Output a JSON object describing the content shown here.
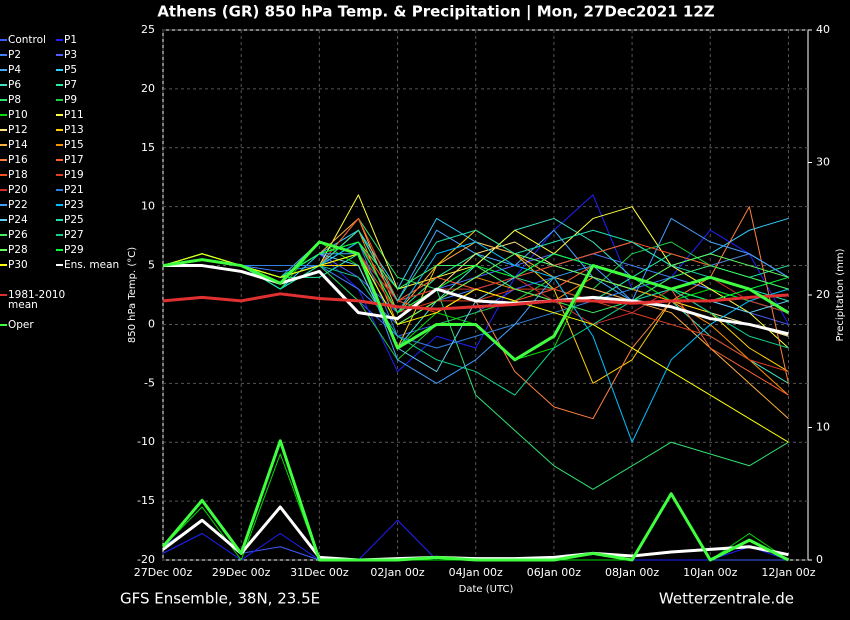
{
  "chart_data": {
    "type": "line",
    "title": "Athens  (GR)  850 hPa Temp. & Precipitation | Mon, 27Dec2021 12Z",
    "footer_left": "GFS Ensemble, 38N, 23.5E",
    "footer_right": "Wetterzentrale.de",
    "xlabel": "Date (UTC)",
    "ylabel": "850 hPa Temp. (°C)",
    "y2label": "Precipitation (mm)",
    "grid": true,
    "x": [
      0,
      1,
      2,
      3,
      4,
      5,
      6,
      7,
      8,
      9,
      10,
      11,
      12,
      13,
      14,
      15,
      16
    ],
    "xlim": [
      0,
      16.5
    ],
    "xticks": [
      {
        "value": 0,
        "label": "27Dec 00z"
      },
      {
        "value": 2,
        "label": "29Dec 00z"
      },
      {
        "value": 4,
        "label": "31Dec 00z"
      },
      {
        "value": 6,
        "label": "02Jan 00z"
      },
      {
        "value": 8,
        "label": "04Jan 00z"
      },
      {
        "value": 10,
        "label": "06Jan 00z"
      },
      {
        "value": 12,
        "label": "08Jan 00z"
      },
      {
        "value": 14,
        "label": "10Jan 00z"
      },
      {
        "value": 16,
        "label": "12Jan 00z"
      }
    ],
    "ylim": [
      -20,
      25
    ],
    "yticks": [
      -20,
      -15,
      -10,
      -5,
      0,
      5,
      10,
      15,
      20,
      25
    ],
    "y2lim": [
      0,
      40
    ],
    "y2ticks": [
      0,
      10,
      20,
      30,
      40
    ],
    "series": [
      {
        "name": "Control",
        "color": "#3a5cff",
        "values": [
          5,
          5.5,
          5,
          4,
          5,
          2,
          -1,
          0,
          1,
          3,
          4,
          3,
          2,
          4,
          3,
          2,
          1
        ],
        "precip": [
          1,
          3,
          0.5,
          1,
          0,
          0,
          0,
          0,
          0,
          0,
          0,
          0,
          0,
          0,
          0,
          0,
          0
        ]
      },
      {
        "name": "P1",
        "color": "#2020ff",
        "values": [
          5,
          6,
          5,
          4,
          6,
          3,
          -4,
          -1,
          -2,
          4,
          8,
          11,
          3,
          4,
          8,
          6,
          0
        ],
        "precip": [
          0.5,
          2,
          0,
          2,
          0,
          0,
          3,
          0,
          0,
          0,
          0,
          0,
          0,
          0,
          0,
          1,
          0
        ]
      },
      {
        "name": "P2",
        "color": "#4080ff",
        "values": [
          5,
          6,
          5,
          4.5,
          5,
          3,
          0,
          2,
          3,
          4,
          5,
          6,
          5,
          4,
          3,
          2,
          1
        ]
      },
      {
        "name": "P3",
        "color": "#5060ff",
        "values": [
          5,
          6,
          5,
          4,
          6,
          4,
          1,
          3,
          4,
          5,
          6,
          5,
          4,
          3,
          2,
          1,
          0
        ]
      },
      {
        "name": "P4",
        "color": "#4aa8ff",
        "values": [
          5,
          6,
          5,
          4,
          7,
          6,
          2,
          8,
          6,
          5,
          8,
          4,
          2,
          3,
          1,
          0,
          -1
        ]
      },
      {
        "name": "P5",
        "color": "#30d0ff",
        "values": [
          5,
          6,
          5,
          3,
          6,
          8,
          3,
          9,
          7,
          6,
          5,
          6,
          7,
          5,
          6,
          8,
          9
        ]
      },
      {
        "name": "P6",
        "color": "#40e0c0",
        "values": [
          5,
          6,
          5,
          4,
          5,
          5,
          -2,
          2,
          5,
          8,
          9,
          7,
          4,
          2,
          -1,
          -3,
          -5
        ]
      },
      {
        "name": "P7",
        "color": "#20f0a0",
        "values": [
          5,
          6,
          5,
          4,
          4,
          6,
          1,
          4,
          6,
          4,
          3,
          2,
          4,
          6,
          5,
          4,
          5
        ]
      },
      {
        "name": "P8",
        "color": "#30e070",
        "values": [
          5,
          6,
          5,
          3,
          5,
          9,
          4,
          3,
          -6,
          -9,
          -12,
          -14,
          -12,
          -10,
          -11,
          -12,
          -10
        ]
      },
      {
        "name": "P9",
        "color": "#20d040",
        "values": [
          5,
          6,
          5,
          4,
          5,
          2,
          -3,
          0,
          1,
          2,
          4,
          3,
          6,
          7,
          5,
          4,
          3
        ]
      },
      {
        "name": "P10",
        "color": "#00e000",
        "values": [
          5,
          5.5,
          5,
          3,
          7,
          5,
          -2,
          1,
          0,
          -3,
          -2,
          5,
          4,
          2,
          3,
          2,
          1
        ],
        "precip": [
          1,
          4,
          0,
          8,
          0,
          0,
          0,
          0,
          0,
          0,
          0,
          0,
          0,
          5,
          0,
          2,
          0
        ]
      },
      {
        "name": "P11",
        "color": "#ffff40",
        "values": [
          5,
          6,
          5,
          4,
          5,
          11,
          3,
          4,
          5,
          8,
          6,
          9,
          10,
          5,
          3,
          1,
          -2
        ]
      },
      {
        "name": "P12",
        "color": "#ffe080",
        "values": [
          5,
          6,
          5,
          4,
          5,
          8,
          2,
          3,
          6,
          7,
          5,
          4,
          3,
          2,
          1,
          0,
          -1
        ]
      },
      {
        "name": "P13",
        "color": "#ffd000",
        "values": [
          5,
          6,
          5,
          4,
          5,
          5,
          -2,
          5,
          8,
          6,
          3,
          -5,
          -3,
          2,
          1,
          -2,
          -4
        ]
      },
      {
        "name": "P14",
        "color": "#ffb040",
        "values": [
          5,
          6,
          5,
          4,
          6,
          9,
          1,
          5,
          7,
          6,
          4,
          3,
          2,
          1,
          -2,
          -5,
          -8
        ]
      },
      {
        "name": "P15",
        "color": "#ff9000",
        "values": [
          5,
          6,
          5,
          4,
          5,
          8,
          0,
          2,
          4,
          3,
          2,
          4,
          3,
          2,
          0,
          -3,
          -6
        ]
      },
      {
        "name": "P16",
        "color": "#ff8040",
        "values": [
          5,
          6,
          5,
          4,
          5,
          7,
          1,
          3,
          2,
          -4,
          -7,
          -8,
          -2,
          2,
          4,
          10,
          -5
        ]
      },
      {
        "name": "P17",
        "color": "#ff6030",
        "values": [
          5,
          6,
          5,
          4,
          5,
          7,
          2,
          4,
          3,
          2,
          3,
          5,
          4,
          3,
          -2,
          -4,
          -6
        ]
      },
      {
        "name": "P18",
        "color": "#ff5020",
        "values": [
          5,
          6,
          5,
          4,
          5,
          9,
          2,
          1,
          3,
          4,
          5,
          6,
          7,
          6,
          5,
          6,
          4
        ]
      },
      {
        "name": "P19",
        "color": "#e04020",
        "values": [
          5,
          6,
          5,
          4,
          5,
          6,
          1,
          2,
          2,
          3,
          3,
          2,
          1,
          0,
          -1,
          -3,
          -4
        ]
      },
      {
        "name": "P20",
        "color": "#d03030",
        "values": [
          5,
          6,
          5,
          4,
          5,
          6,
          2,
          3,
          3,
          4,
          2,
          0,
          1,
          3,
          4,
          2,
          1
        ]
      },
      {
        "name": "P21",
        "color": "#3080e0",
        "values": [
          5,
          6,
          5,
          5,
          5,
          7,
          -1,
          -2,
          -1,
          0,
          1,
          2,
          3,
          4,
          5,
          6,
          4
        ]
      },
      {
        "name": "P22",
        "color": "#40a0ff",
        "values": [
          5,
          6,
          5,
          4,
          6,
          6,
          -3,
          -5,
          -3,
          0,
          4,
          5,
          2,
          9,
          7,
          6,
          4
        ]
      },
      {
        "name": "P23",
        "color": "#00c0ff",
        "values": [
          5,
          6,
          5,
          4,
          5,
          7,
          1,
          6,
          7,
          5,
          4,
          -1,
          -10,
          -3,
          0,
          2,
          3
        ]
      },
      {
        "name": "P24",
        "color": "#60d0f0",
        "values": [
          5,
          6,
          5,
          4,
          6,
          5,
          -2,
          -4,
          2,
          4,
          6,
          5,
          4,
          3,
          2,
          1,
          2
        ]
      },
      {
        "name": "P25",
        "color": "#20e0b0",
        "values": [
          5,
          6,
          5,
          3,
          5,
          8,
          2,
          7,
          8,
          6,
          7,
          8,
          7,
          5,
          4,
          3,
          2
        ]
      },
      {
        "name": "P26",
        "color": "#40f060",
        "values": [
          5,
          6,
          5,
          4,
          6,
          7,
          3,
          5,
          5,
          3,
          2,
          1,
          2,
          4,
          5,
          4,
          3
        ]
      },
      {
        "name": "P27",
        "color": "#10d090",
        "values": [
          5,
          6,
          5,
          4,
          5,
          4,
          -1,
          -3,
          -4,
          -6,
          -2,
          0,
          2,
          3,
          1,
          -1,
          -2
        ]
      },
      {
        "name": "P28",
        "color": "#60ff60",
        "values": [
          5,
          6,
          5,
          4,
          5,
          6,
          0,
          2,
          4,
          6,
          5,
          4,
          3,
          5,
          6,
          5,
          4
        ]
      },
      {
        "name": "P29",
        "color": "#00ff40",
        "values": [
          5,
          6,
          5,
          4,
          6,
          7,
          1,
          3,
          5,
          4,
          6,
          5,
          4,
          3,
          2,
          3,
          4
        ]
      },
      {
        "name": "P30",
        "color": "#ffff00",
        "values": [
          5,
          6,
          5,
          4,
          5,
          6,
          0,
          1,
          3,
          2,
          1,
          0,
          -2,
          -4,
          -6,
          -8,
          -10
        ]
      },
      {
        "name": "Ens. mean",
        "color": "#ffffff",
        "values": [
          5,
          5,
          4.5,
          3.5,
          4.5,
          1,
          0.5,
          3,
          2,
          1.8,
          2,
          2.3,
          2,
          1.5,
          0.5,
          0,
          -0.8
        ],
        "precip": [
          0.8,
          3,
          0.5,
          4,
          0.2,
          0,
          0.1,
          0.2,
          0.1,
          0.1,
          0.2,
          0.5,
          0.3,
          0.6,
          0.8,
          1,
          0.4
        ]
      },
      {
        "name": "1981-2010\nmean",
        "color": "#e03030",
        "values": [
          2,
          2.3,
          2,
          2.6,
          2.2,
          2,
          1.5,
          1.3,
          1.5,
          1.7,
          2,
          2,
          1.8,
          2,
          2,
          2.3,
          2.5
        ]
      },
      {
        "name": "Oper",
        "color": "#40ff40",
        "values": [
          5,
          5.5,
          5,
          3.5,
          7,
          6,
          -2,
          0,
          0,
          -3,
          -1,
          5,
          4,
          3,
          4,
          3,
          1
        ],
        "precip": [
          1,
          4.5,
          0.5,
          9,
          0,
          0,
          0,
          0.2,
          0,
          0,
          0,
          0.5,
          0,
          5,
          0,
          1.5,
          0
        ]
      }
    ]
  }
}
